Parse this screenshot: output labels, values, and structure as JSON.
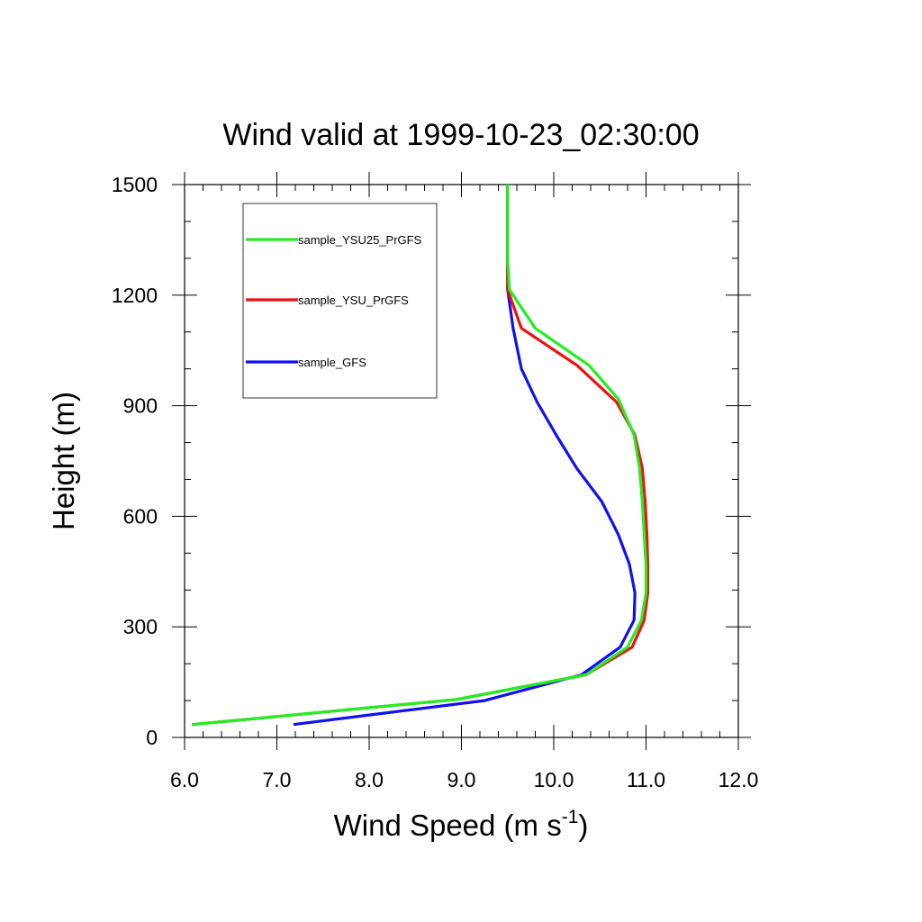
{
  "chart_data": {
    "type": "line",
    "title": "Wind valid at 1999-10-23_02:30:00",
    "xlabel": {
      "main": "Wind Speed (m s",
      "sup": "-1",
      "end": ")"
    },
    "ylabel": "Height (m)",
    "xlim": [
      6.0,
      12.0
    ],
    "ylim": [
      0,
      1500
    ],
    "xticks": [
      "6.0",
      "7.0",
      "8.0",
      "9.0",
      "10.0",
      "11.0",
      "12.0"
    ],
    "yticks": [
      "0",
      "300",
      "600",
      "900",
      "1200",
      "1500"
    ],
    "grid": false,
    "legend_position": "top-left",
    "series": [
      {
        "name": "sample_YSU25_PrGFS",
        "color": "#22ee22",
        "points": [
          [
            6.08,
            35
          ],
          [
            8.95,
            103
          ],
          [
            10.35,
            170
          ],
          [
            10.8,
            245
          ],
          [
            10.95,
            318
          ],
          [
            11.0,
            392
          ],
          [
            11.0,
            465
          ],
          [
            10.98,
            550
          ],
          [
            10.96,
            640
          ],
          [
            10.93,
            730
          ],
          [
            10.87,
            820
          ],
          [
            10.7,
            918
          ],
          [
            10.38,
            1010
          ],
          [
            9.8,
            1110
          ],
          [
            9.52,
            1215
          ],
          [
            9.5,
            1300
          ],
          [
            9.5,
            1400
          ],
          [
            9.5,
            1500
          ]
        ]
      },
      {
        "name": "sample_YSU_PrGFS",
        "color": "#ee1111",
        "points": [
          [
            6.08,
            35
          ],
          [
            8.95,
            103
          ],
          [
            10.35,
            170
          ],
          [
            10.85,
            245
          ],
          [
            10.98,
            318
          ],
          [
            11.02,
            392
          ],
          [
            11.02,
            465
          ],
          [
            11.01,
            550
          ],
          [
            10.99,
            640
          ],
          [
            10.96,
            730
          ],
          [
            10.88,
            820
          ],
          [
            10.68,
            910
          ],
          [
            10.25,
            1010
          ],
          [
            9.65,
            1110
          ],
          [
            9.5,
            1215
          ],
          [
            9.5,
            1300
          ],
          [
            9.5,
            1400
          ],
          [
            9.5,
            1500
          ]
        ]
      },
      {
        "name": "sample_GFS",
        "color": "#1111ee",
        "points": [
          [
            7.18,
            35
          ],
          [
            9.25,
            100
          ],
          [
            10.3,
            170
          ],
          [
            10.72,
            245
          ],
          [
            10.87,
            318
          ],
          [
            10.88,
            392
          ],
          [
            10.82,
            470
          ],
          [
            10.7,
            550
          ],
          [
            10.52,
            640
          ],
          [
            10.25,
            730
          ],
          [
            10.04,
            815
          ],
          [
            9.82,
            910
          ],
          [
            9.65,
            1000
          ],
          [
            9.56,
            1110
          ],
          [
            9.5,
            1215
          ],
          [
            9.5,
            1300
          ],
          [
            9.5,
            1400
          ],
          [
            9.5,
            1500
          ]
        ]
      }
    ]
  }
}
